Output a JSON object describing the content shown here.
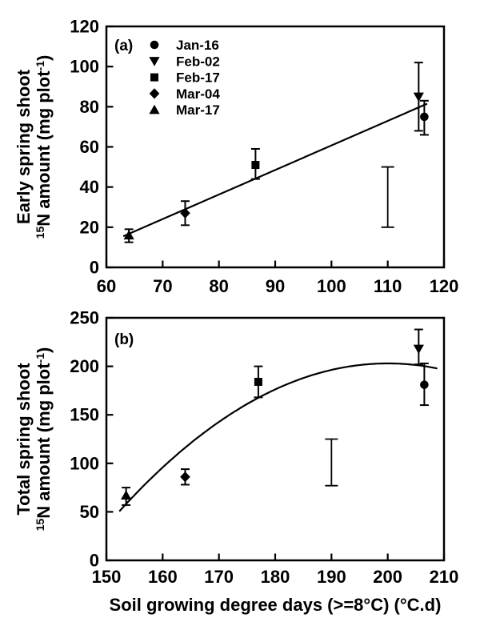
{
  "figure": {
    "xlabel": "Soil growing degree days (>=8°C) (°C.d)",
    "colors": {
      "foreground": "#000000",
      "background": "#ffffff"
    }
  },
  "legend": {
    "position": "top-left-inside-panel-a",
    "entries": [
      {
        "marker": "circle",
        "label": "Jan-16"
      },
      {
        "marker": "triangle-down",
        "label": "Feb-02"
      },
      {
        "marker": "square",
        "label": "Feb-17"
      },
      {
        "marker": "diamond",
        "label": "Mar-04"
      },
      {
        "marker": "triangle-up",
        "label": "Mar-17"
      }
    ]
  },
  "chart_data": [
    {
      "type": "scatter",
      "panel_tag": "(a)",
      "ylabel": {
        "line1": "Early spring shoot",
        "line2_parts": [
          {
            "t": "15",
            "sup": true
          },
          {
            "t": "N amount (mg plot",
            "sup": false
          },
          {
            "t": "-1",
            "sup": true
          },
          {
            "t": ")",
            "sup": false
          }
        ]
      },
      "xlim": [
        60,
        120
      ],
      "xticks": [
        60,
        70,
        80,
        90,
        100,
        110,
        120
      ],
      "ylim": [
        0,
        120
      ],
      "yticks": [
        0,
        20,
        40,
        60,
        80,
        100,
        120
      ],
      "grid": false,
      "points": [
        {
          "series": "Mar-17",
          "marker": "triangle-up",
          "x": 64,
          "y": 16,
          "err_lo": 12.5,
          "err_hi": 19
        },
        {
          "series": "Mar-04",
          "marker": "diamond",
          "x": 74,
          "y": 27,
          "err_lo": 21,
          "err_hi": 33
        },
        {
          "series": "Feb-17",
          "marker": "square",
          "x": 86.5,
          "y": 51,
          "err_lo": 44,
          "err_hi": 59
        },
        {
          "series": "Feb-02",
          "marker": "triangle-down",
          "x": 115.5,
          "y": 85,
          "err_lo": 68,
          "err_hi": 102
        },
        {
          "series": "Jan-16",
          "marker": "circle",
          "x": 116.5,
          "y": 75,
          "err_lo": 66,
          "err_hi": 83
        }
      ],
      "fit_line": {
        "kind": "linear",
        "x1": 63,
        "y1": 15.5,
        "x2": 117,
        "y2": 81.5
      },
      "lsd_bar": {
        "x": 110,
        "lo": 20,
        "hi": 50
      }
    },
    {
      "type": "scatter",
      "panel_tag": "(b)",
      "ylabel": {
        "line1": "Total spring shoot",
        "line2_parts": [
          {
            "t": "15",
            "sup": true
          },
          {
            "t": "N amount (mg plot",
            "sup": false
          },
          {
            "t": "-1",
            "sup": true
          },
          {
            "t": ")",
            "sup": false
          }
        ]
      },
      "xlim": [
        150,
        210
      ],
      "xticks": [
        150,
        160,
        170,
        180,
        190,
        200,
        210
      ],
      "ylim": [
        0,
        250
      ],
      "yticks": [
        0,
        50,
        100,
        150,
        200,
        250
      ],
      "grid": false,
      "points": [
        {
          "series": "Mar-17",
          "marker": "triangle-up",
          "x": 153.5,
          "y": 67,
          "err_lo": 57,
          "err_hi": 75
        },
        {
          "series": "Mar-04",
          "marker": "diamond",
          "x": 164,
          "y": 86,
          "err_lo": 78,
          "err_hi": 94
        },
        {
          "series": "Feb-17",
          "marker": "square",
          "x": 177,
          "y": 184,
          "err_lo": 168,
          "err_hi": 200
        },
        {
          "series": "Feb-02",
          "marker": "triangle-down",
          "x": 205.5,
          "y": 218,
          "err_lo": 202,
          "err_hi": 238
        },
        {
          "series": "Jan-16",
          "marker": "circle",
          "x": 206.5,
          "y": 181,
          "err_lo": 160,
          "err_hi": 203
        }
      ],
      "fit_line": {
        "kind": "quadratic",
        "a": -0.067,
        "peak_x": 200,
        "peak_y": 203,
        "x_start": 152.3,
        "x_end": 209
      },
      "lsd_bar": {
        "x": 190,
        "lo": 77,
        "hi": 125
      }
    }
  ]
}
